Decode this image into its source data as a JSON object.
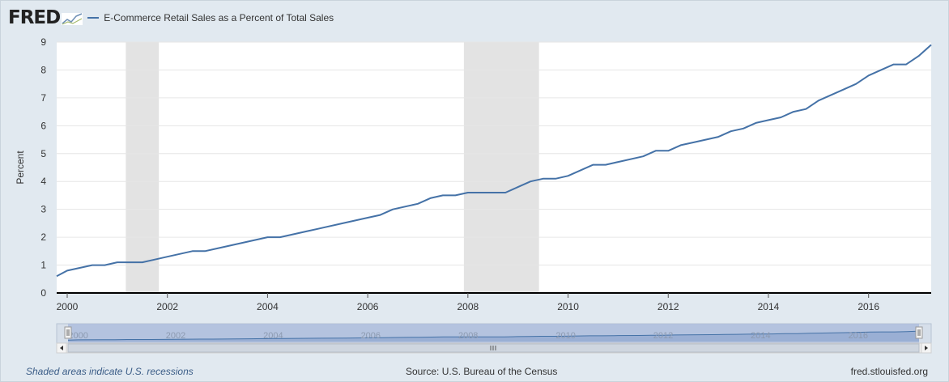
{
  "header": {
    "logo": "FRED",
    "series_label": "E-Commerce Retail Sales as a Percent of Total Sales"
  },
  "footer": {
    "note": "Shaded areas indicate U.S. recessions",
    "source": "Source: U.S. Bureau of the Census",
    "site": "fred.stlouisfed.org"
  },
  "colors": {
    "line": "#4572a7",
    "recession": "#e3e3e3",
    "background": "#e1e9f0",
    "navigator_fill": "#aebedd",
    "navigator_line": "#4572a7"
  },
  "chart_data": {
    "type": "line",
    "ylabel": "Percent",
    "xlabel": "",
    "ylim": [
      0,
      9
    ],
    "xlim": [
      1999.79,
      2017.25
    ],
    "yticks": [
      "0",
      "1",
      "2",
      "3",
      "4",
      "5",
      "6",
      "7",
      "8",
      "9"
    ],
    "xticks": [
      "2000",
      "2002",
      "2004",
      "2006",
      "2008",
      "2010",
      "2012",
      "2014",
      "2016"
    ],
    "recessions": [
      [
        2001.17,
        2001.83
      ],
      [
        2007.92,
        2009.42
      ]
    ],
    "grid": true,
    "series": [
      {
        "x": [
          1999.79,
          2000.0,
          2000.5,
          2000.75,
          2001.0,
          2001.25,
          2001.5,
          2001.75,
          2002.0,
          2002.5,
          2002.75,
          2003.0,
          2003.5,
          2004.0,
          2004.25,
          2005.0,
          2005.5,
          2006.0,
          2006.25,
          2006.5,
          2007.0,
          2007.25,
          2007.5,
          2007.75,
          2008.0,
          2008.25,
          2008.5,
          2008.75,
          2009.0,
          2009.25,
          2009.5,
          2009.75,
          2010.0,
          2010.5,
          2010.75,
          2011.0,
          2011.5,
          2011.75,
          2012.0,
          2012.25,
          2012.5,
          2013.0,
          2013.25,
          2013.5,
          2013.75,
          2014.0,
          2014.25,
          2014.5,
          2014.75,
          2015.0,
          2015.5,
          2015.75,
          2016.0,
          2016.25,
          2016.5,
          2016.75,
          2017.0,
          2017.25
        ],
        "values": [
          0.6,
          0.8,
          1.0,
          1.0,
          1.1,
          1.1,
          1.1,
          1.2,
          1.3,
          1.5,
          1.5,
          1.6,
          1.8,
          2.0,
          2.0,
          2.3,
          2.5,
          2.7,
          2.8,
          3.0,
          3.2,
          3.4,
          3.5,
          3.5,
          3.6,
          3.6,
          3.6,
          3.6,
          3.8,
          4.0,
          4.1,
          4.1,
          4.2,
          4.6,
          4.6,
          4.7,
          4.9,
          5.1,
          5.1,
          5.3,
          5.4,
          5.6,
          5.8,
          5.9,
          6.1,
          6.2,
          6.3,
          6.5,
          6.6,
          6.9,
          7.3,
          7.5,
          7.8,
          8.0,
          8.2,
          8.2,
          8.5,
          8.9
        ]
      }
    ]
  }
}
